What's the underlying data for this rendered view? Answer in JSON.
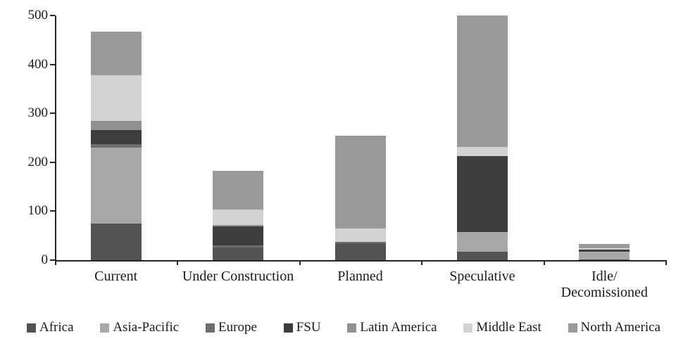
{
  "chart_data": {
    "type": "bar",
    "stacked": true,
    "title": "",
    "xlabel": "",
    "ylabel": "",
    "ylim": [
      0,
      500
    ],
    "yticks": [
      0,
      100,
      200,
      300,
      400,
      500
    ],
    "grid": false,
    "legend_position": "bottom",
    "categories": [
      "Current",
      "Under Construction",
      "Planned",
      "Speculative",
      "Idle/\nDecomissioned"
    ],
    "series": [
      {
        "name": "Africa",
        "color": "#545454",
        "values": [
          75,
          26,
          34,
          17,
          2
        ]
      },
      {
        "name": "Asia-Pacific",
        "color": "#a8a8a8",
        "values": [
          155,
          0,
          0,
          40,
          15
        ]
      },
      {
        "name": "Europe",
        "color": "#6e6e6e",
        "values": [
          7,
          4,
          4,
          0,
          0
        ]
      },
      {
        "name": "FSU",
        "color": "#3d3d3d",
        "values": [
          29,
          39,
          0,
          155,
          4
        ]
      },
      {
        "name": "Latin America",
        "color": "#919191",
        "values": [
          19,
          3,
          0,
          0,
          0
        ]
      },
      {
        "name": "Middle East",
        "color": "#d2d2d2",
        "values": [
          93,
          32,
          26,
          19,
          3
        ]
      },
      {
        "name": "North America",
        "color": "#9a9a9a",
        "values": [
          89,
          79,
          191,
          269,
          9
        ]
      }
    ],
    "totals": [
      467,
      183,
      255,
      500,
      33
    ]
  }
}
